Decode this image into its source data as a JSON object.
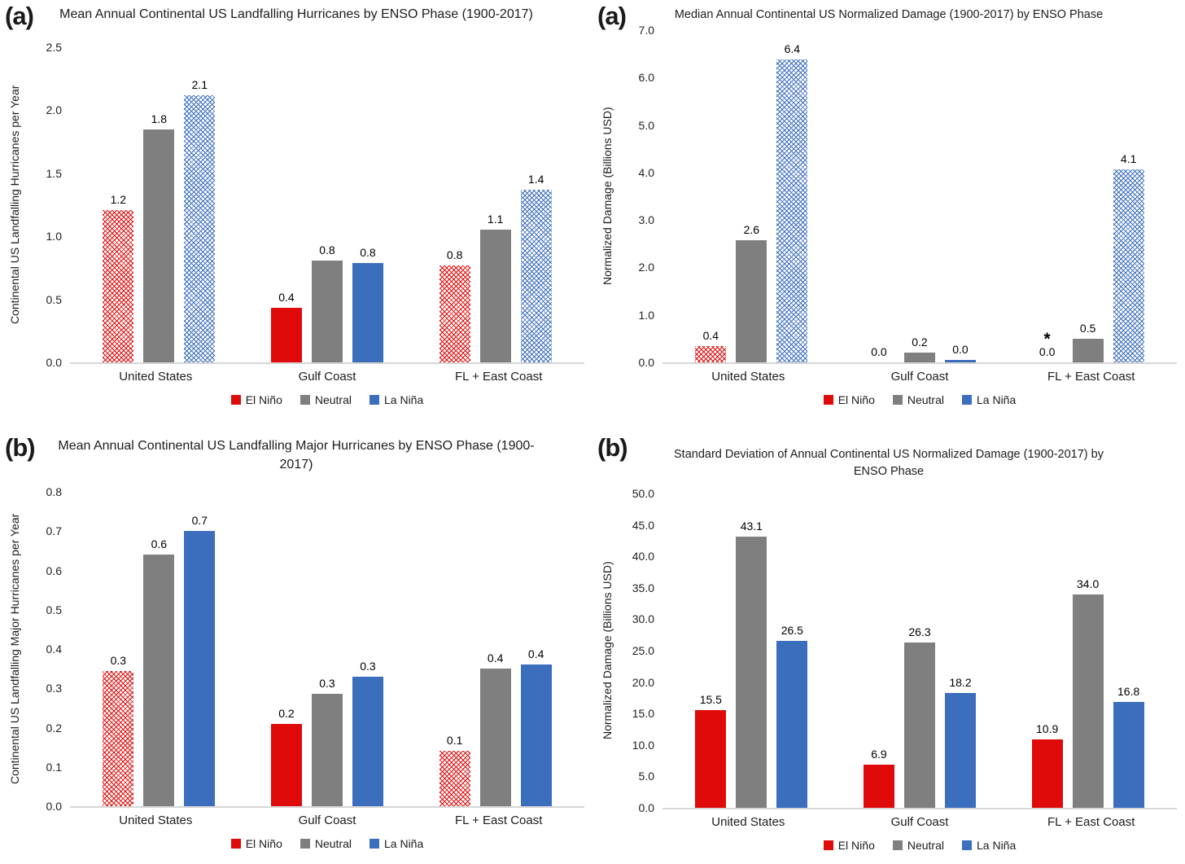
{
  "chart_data": [
    {
      "type": "bar",
      "panel_label": "(a)",
      "title": "Mean Annual Continental US Landfalling Hurricanes by ENSO Phase (1900-2017)",
      "ylabel": "Continental US Landfalling Hurricanes per Year",
      "ylim": [
        0,
        2.5
      ],
      "yticks": [
        "2.5",
        "2.0",
        "1.5",
        "1.0",
        "0.5",
        "0.0"
      ],
      "grid": false,
      "legend_position": "bottom",
      "categories": [
        "United States",
        "Gulf Coast",
        "FL + East Coast"
      ],
      "series": [
        {
          "name": "El Niño",
          "color": "#DF0B0B",
          "values": [
            1.21,
            0.43,
            0.77
          ],
          "labels": [
            "1.2",
            "0.4",
            "0.8"
          ],
          "hatched": [
            true,
            false,
            true
          ]
        },
        {
          "name": "Neutral",
          "color": "#7F7F7F",
          "values": [
            1.85,
            0.81,
            1.05
          ],
          "labels": [
            "1.8",
            "0.8",
            "1.1"
          ],
          "hatched": [
            false,
            false,
            false
          ]
        },
        {
          "name": "La Niña",
          "color": "#3C6EBE",
          "values": [
            2.12,
            0.79,
            1.37
          ],
          "labels": [
            "2.1",
            "0.8",
            "1.4"
          ],
          "hatched": [
            true,
            false,
            true
          ]
        }
      ],
      "legend": [
        {
          "label": "El Niño",
          "color": "#DF0B0B"
        },
        {
          "label": "Neutral",
          "color": "#7F7F7F"
        },
        {
          "label": "La Niña",
          "color": "#3C6EBE"
        }
      ],
      "annotations": []
    },
    {
      "type": "bar",
      "panel_label": "(a)",
      "title": "Median Annual Continental US Normalized Damage (1900-2017) by ENSO Phase",
      "ylabel": "Normalized Damage (Billions USD)",
      "ylim": [
        0,
        7.0
      ],
      "yticks": [
        "7.0",
        "6.0",
        "5.0",
        "4.0",
        "3.0",
        "2.0",
        "1.0",
        "0.0"
      ],
      "grid": false,
      "legend_position": "bottom",
      "categories": [
        "United States",
        "Gulf Coast",
        "FL + East Coast"
      ],
      "series": [
        {
          "name": "El Niño",
          "color": "#DF0B0B",
          "values": [
            0.35,
            0.0,
            0.0
          ],
          "labels": [
            "0.4",
            "0.0",
            "0.0"
          ],
          "hatched": [
            true,
            false,
            false
          ]
        },
        {
          "name": "Neutral",
          "color": "#7F7F7F",
          "values": [
            2.57,
            0.2,
            0.5
          ],
          "labels": [
            "2.6",
            "0.2",
            "0.5"
          ],
          "hatched": [
            false,
            false,
            false
          ]
        },
        {
          "name": "La Niña",
          "color": "#3C6EBE",
          "values": [
            6.38,
            0.05,
            4.07
          ],
          "labels": [
            "6.4",
            "0.0",
            "4.1"
          ],
          "hatched": [
            true,
            false,
            true
          ]
        }
      ],
      "legend": [
        {
          "label": "El Niño",
          "color": "#DF0B0B"
        },
        {
          "label": "Neutral",
          "color": "#7F7F7F"
        },
        {
          "label": "La Niña",
          "color": "#3C6EBE"
        }
      ],
      "annotations": [
        {
          "series": 0,
          "category": 2,
          "text": "*"
        }
      ]
    },
    {
      "type": "bar",
      "panel_label": "(b)",
      "title": "Mean Annual Continental US Landfalling Major Hurricanes by ENSO Phase (1900-2017)",
      "ylabel": "Continental US Landfalling Major Hurricanes per Year",
      "ylim": [
        0,
        0.8
      ],
      "yticks": [
        "0.8",
        "0.7",
        "0.6",
        "0.5",
        "0.4",
        "0.3",
        "0.2",
        "0.1",
        "0.0"
      ],
      "grid": false,
      "legend_position": "bottom",
      "categories": [
        "United States",
        "Gulf Coast",
        "FL + East Coast"
      ],
      "series": [
        {
          "name": "El Niño",
          "color": "#DF0B0B",
          "values": [
            0.345,
            0.21,
            0.14
          ],
          "labels": [
            "0.3",
            "0.2",
            "0.1"
          ],
          "hatched": [
            true,
            false,
            true
          ]
        },
        {
          "name": "Neutral",
          "color": "#7F7F7F",
          "values": [
            0.64,
            0.285,
            0.35
          ],
          "labels": [
            "0.6",
            "0.3",
            "0.4"
          ],
          "hatched": [
            false,
            false,
            false
          ]
        },
        {
          "name": "La Niña",
          "color": "#3C6EBE",
          "values": [
            0.7,
            0.33,
            0.36
          ],
          "labels": [
            "0.7",
            "0.3",
            "0.4"
          ],
          "hatched": [
            false,
            false,
            false
          ]
        }
      ],
      "legend": [
        {
          "label": "El Niño",
          "color": "#DF0B0B"
        },
        {
          "label": "Neutral",
          "color": "#7F7F7F"
        },
        {
          "label": "La Niña",
          "color": "#3C6EBE"
        }
      ],
      "annotations": []
    },
    {
      "type": "bar",
      "panel_label": "(b)",
      "title": "Standard Deviation of Annual Continental US Normalized Damage (1900-2017) by ENSO Phase",
      "ylabel": "Normalized Damage (Billions USD)",
      "ylim": [
        0,
        50.0
      ],
      "yticks": [
        "50.0",
        "45.0",
        "40.0",
        "35.0",
        "30.0",
        "25.0",
        "20.0",
        "15.0",
        "10.0",
        "5.0",
        "0.0"
      ],
      "grid": false,
      "legend_position": "bottom",
      "categories": [
        "United States",
        "Gulf Coast",
        "FL + East Coast"
      ],
      "series": [
        {
          "name": "El Niño",
          "color": "#DF0B0B",
          "values": [
            15.5,
            6.9,
            10.9
          ],
          "labels": [
            "15.5",
            "6.9",
            "10.9"
          ],
          "hatched": [
            false,
            false,
            false
          ]
        },
        {
          "name": "Neutral",
          "color": "#7F7F7F",
          "values": [
            43.1,
            26.3,
            34.0
          ],
          "labels": [
            "43.1",
            "26.3",
            "34.0"
          ],
          "hatched": [
            false,
            false,
            false
          ]
        },
        {
          "name": "La Niña",
          "color": "#3C6EBE",
          "values": [
            26.5,
            18.2,
            16.8
          ],
          "labels": [
            "26.5",
            "18.2",
            "16.8"
          ],
          "hatched": [
            false,
            false,
            false
          ]
        }
      ],
      "legend": [
        {
          "label": "El Niño",
          "color": "#DF0B0B"
        },
        {
          "label": "Neutral",
          "color": "#7F7F7F"
        },
        {
          "label": "La Niña",
          "color": "#3C6EBE"
        }
      ],
      "annotations": []
    }
  ]
}
